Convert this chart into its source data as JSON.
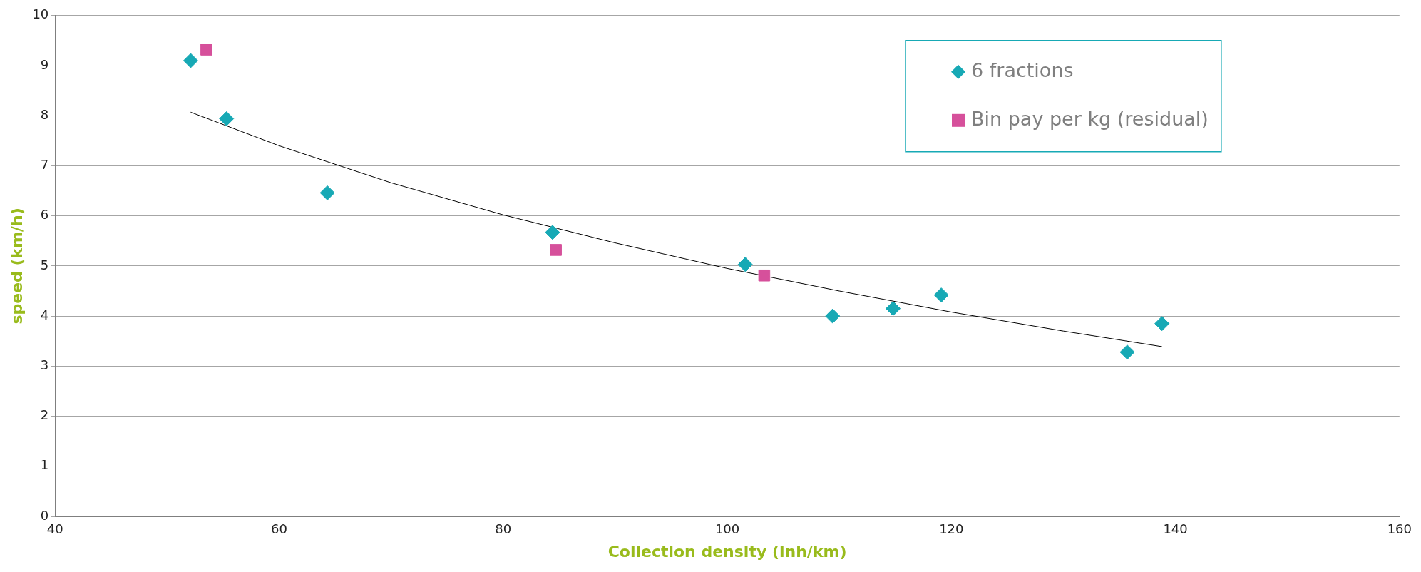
{
  "chart_data": {
    "type": "scatter",
    "xlabel": "Collection density (inh/km)",
    "ylabel": "speed (km/h)",
    "xlim": [
      40,
      160
    ],
    "xticks": [
      40,
      60,
      80,
      100,
      120,
      140,
      160
    ],
    "ylim": [
      0,
      10
    ],
    "yticks": [
      0,
      1,
      2,
      3,
      4,
      5,
      6,
      7,
      8,
      9,
      10
    ],
    "grid": "y",
    "legend": "top right",
    "series": [
      {
        "name": "6 fractions",
        "color": "#17a9b5",
        "marker": "diamond",
        "x": [
          52.1,
          55.3,
          64.3,
          84.4,
          101.6,
          109.4,
          114.8,
          119.1,
          135.7,
          138.8
        ],
        "values": [
          9.1,
          7.94,
          6.46,
          5.67,
          5.03,
          4.0,
          4.15,
          4.42,
          3.28,
          3.85
        ]
      },
      {
        "name": "Bin pay per kg (residual)",
        "color": "#d6509b",
        "marker": "square",
        "x": [
          53.5,
          84.7,
          103.3
        ],
        "values": [
          9.32,
          5.32,
          4.81
        ]
      },
      {
        "type": "line",
        "color": "#000000",
        "marker": "none",
        "x": [
          52.1,
          60,
          70,
          80,
          90,
          100,
          110,
          120,
          130,
          138.8
        ],
        "values": [
          8.07,
          7.4,
          6.66,
          6.02,
          5.46,
          4.95,
          4.5,
          4.08,
          3.7,
          3.39
        ]
      }
    ]
  }
}
